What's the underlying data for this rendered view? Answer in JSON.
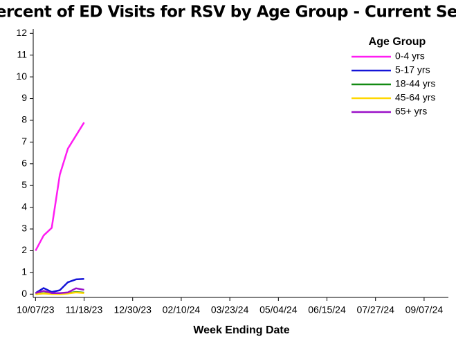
{
  "chart_data": {
    "type": "line",
    "title": "Percent of ED Visits for RSV by Age Group - Current Season",
    "x_label": "Week Ending Date",
    "legend_title": "Age Group",
    "legend_position": "upper right",
    "x": [
      "10/07/23",
      "10/14/23",
      "10/21/23",
      "10/28/23",
      "11/04/23",
      "11/11/23",
      "11/18/23"
    ],
    "xlim": [
      "10/05/23",
      "09/28/24"
    ],
    "xticks": [
      "10/07/23",
      "11/18/23",
      "12/30/23",
      "02/10/24",
      "03/23/24",
      "05/04/24",
      "06/15/24",
      "07/27/24",
      "09/07/24"
    ],
    "ylim": [
      -0.15,
      12.2
    ],
    "yticks": [
      0,
      1,
      2,
      3,
      4,
      5,
      6,
      7,
      8,
      9,
      10,
      11,
      12
    ],
    "series": [
      {
        "name": "0-4 yrs",
        "color": "#ff1cf2",
        "values": [
          2.0,
          2.7,
          3.05,
          5.5,
          6.7,
          7.3,
          7.9
        ]
      },
      {
        "name": "5-17 yrs",
        "color": "#1414d8",
        "values": [
          0.05,
          0.28,
          0.1,
          0.18,
          0.55,
          0.68,
          0.7
        ]
      },
      {
        "name": "18-44 yrs",
        "color": "#138a13",
        "values": [
          0.0,
          0.05,
          0.03,
          0.02,
          0.05,
          0.1,
          0.07
        ]
      },
      {
        "name": "45-64 yrs",
        "color": "#ffd700",
        "values": [
          0.0,
          0.03,
          0.01,
          0.0,
          0.03,
          0.08,
          0.05
        ]
      },
      {
        "name": "65+ yrs",
        "color": "#9a10c8",
        "values": [
          0.05,
          0.15,
          0.05,
          0.05,
          0.08,
          0.27,
          0.2
        ]
      }
    ]
  }
}
